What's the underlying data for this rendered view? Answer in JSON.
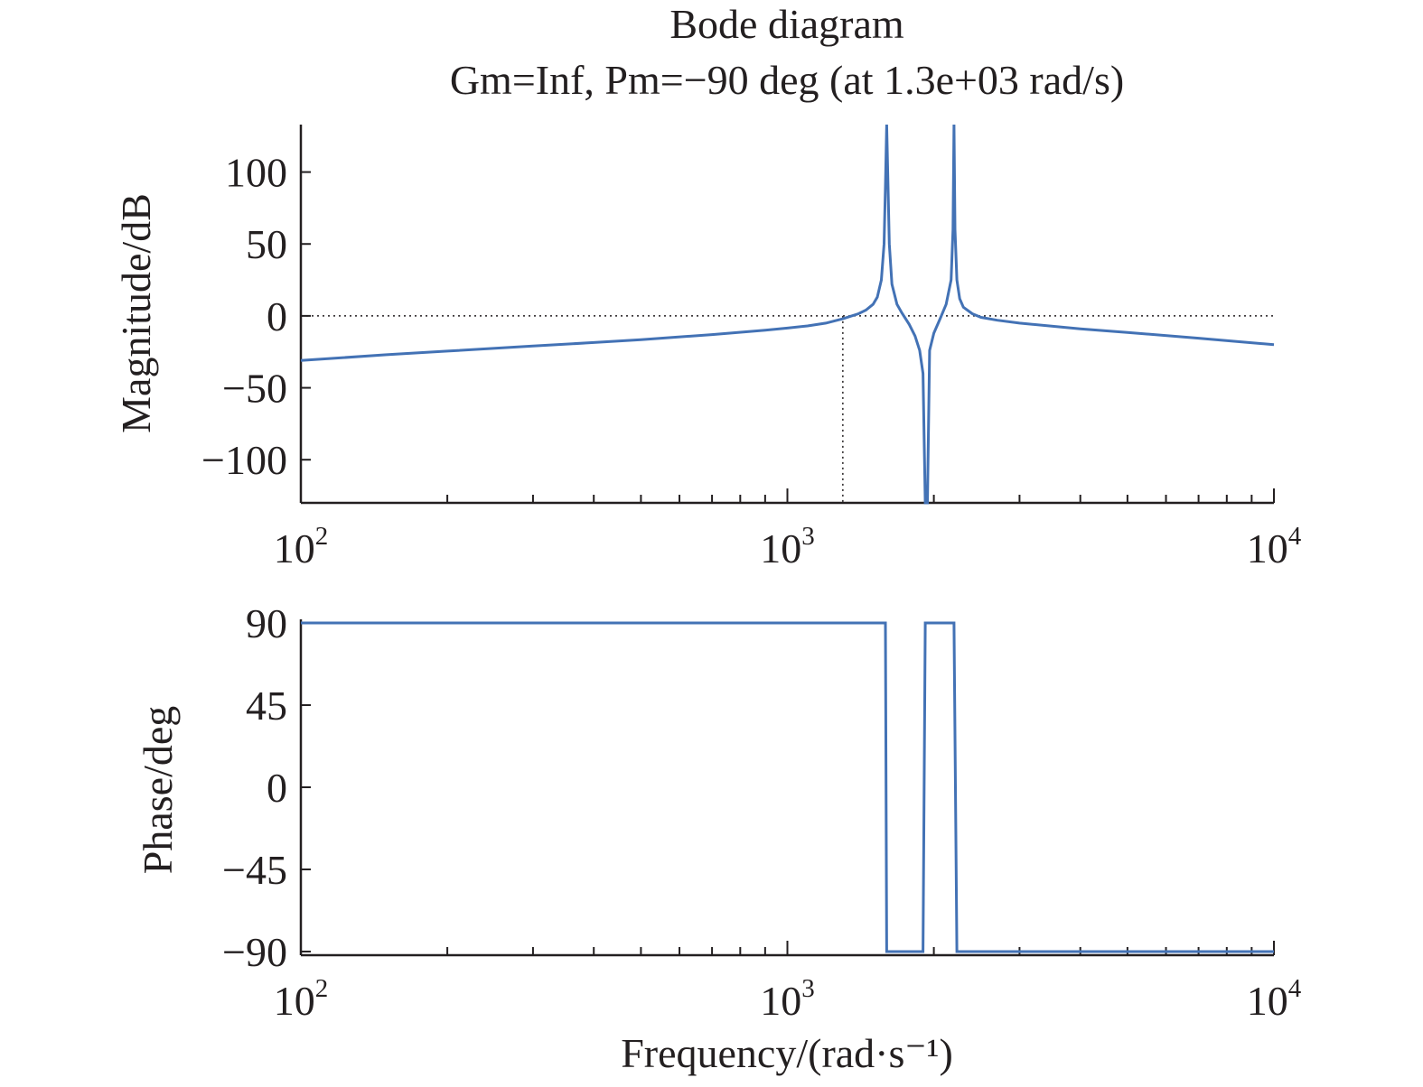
{
  "chart_data": [
    {
      "type": "line",
      "title": "Bode diagram",
      "subtitle": "Gm=Inf,  Pm=−90 deg (at 1.3e+03 rad/s)",
      "ylabel": "Magnitude/dB",
      "xlabel": "",
      "xscale": "log",
      "xlim": [
        100,
        10000
      ],
      "ylim": [
        -130,
        133
      ],
      "yticks": [
        100,
        50,
        0,
        -50,
        -100
      ],
      "ytick_labels": [
        "100",
        "50",
        "0",
        "−50",
        "−100"
      ],
      "xticks": [
        100,
        1000,
        10000
      ],
      "xtick_labels": [
        {
          "base": "10",
          "exp": "2"
        },
        {
          "base": "10",
          "exp": "3"
        },
        {
          "base": "10",
          "exp": "4"
        }
      ],
      "grid": false,
      "reference_line_y": 0,
      "crossover_frequency": 1300,
      "color": "#4372b5",
      "series": [
        {
          "x": [
            100,
            150,
            200,
            300,
            400,
            500,
            700,
            900,
            1000,
            1100,
            1200,
            1300,
            1400,
            1450,
            1500,
            1530,
            1560,
            1580,
            1590,
            1600,
            1610,
            1620,
            1640,
            1680,
            1720,
            1780,
            1830,
            1870,
            1900,
            1920,
            1930,
            1940,
            1960,
            2000,
            2060,
            2120,
            2170,
            2190,
            2200,
            2210,
            2230,
            2260,
            2300,
            2400,
            2500,
            2700,
            3000,
            4000,
            5000,
            7000,
            10000
          ],
          "y": [
            -31,
            -27,
            -24.5,
            -21,
            -18.5,
            -16.5,
            -13,
            -10,
            -8.5,
            -7,
            -5,
            -2,
            1.5,
            4,
            8,
            13,
            25,
            50,
            90,
            133,
            90,
            50,
            22,
            8,
            2,
            -6,
            -14,
            -24,
            -40,
            -130,
            -130,
            -130,
            -24,
            -12,
            -2,
            8,
            25,
            60,
            133,
            60,
            25,
            12,
            6,
            1.5,
            -1,
            -3,
            -5,
            -9,
            -11.5,
            -15.5,
            -20
          ]
        }
      ]
    },
    {
      "type": "line",
      "title": "",
      "ylabel": "Phase/deg",
      "xlabel": "Frequency/(rad·s⁻¹)",
      "xscale": "log",
      "xlim": [
        100,
        10000
      ],
      "ylim": [
        -92,
        92
      ],
      "yticks": [
        90,
        45,
        0,
        -45,
        -90
      ],
      "ytick_labels": [
        "90",
        "45",
        "0",
        "−45",
        "−90"
      ],
      "xticks": [
        100,
        1000,
        10000
      ],
      "xtick_labels": [
        {
          "base": "10",
          "exp": "2"
        },
        {
          "base": "10",
          "exp": "3"
        },
        {
          "base": "10",
          "exp": "4"
        }
      ],
      "grid": false,
      "color": "#4372b5",
      "series": [
        {
          "x": [
            100,
            1590,
            1600,
            1900,
            1920,
            2200,
            2230,
            10000
          ],
          "y": [
            90,
            90,
            -90,
            -90,
            90,
            90,
            -90,
            -90
          ]
        }
      ]
    }
  ]
}
